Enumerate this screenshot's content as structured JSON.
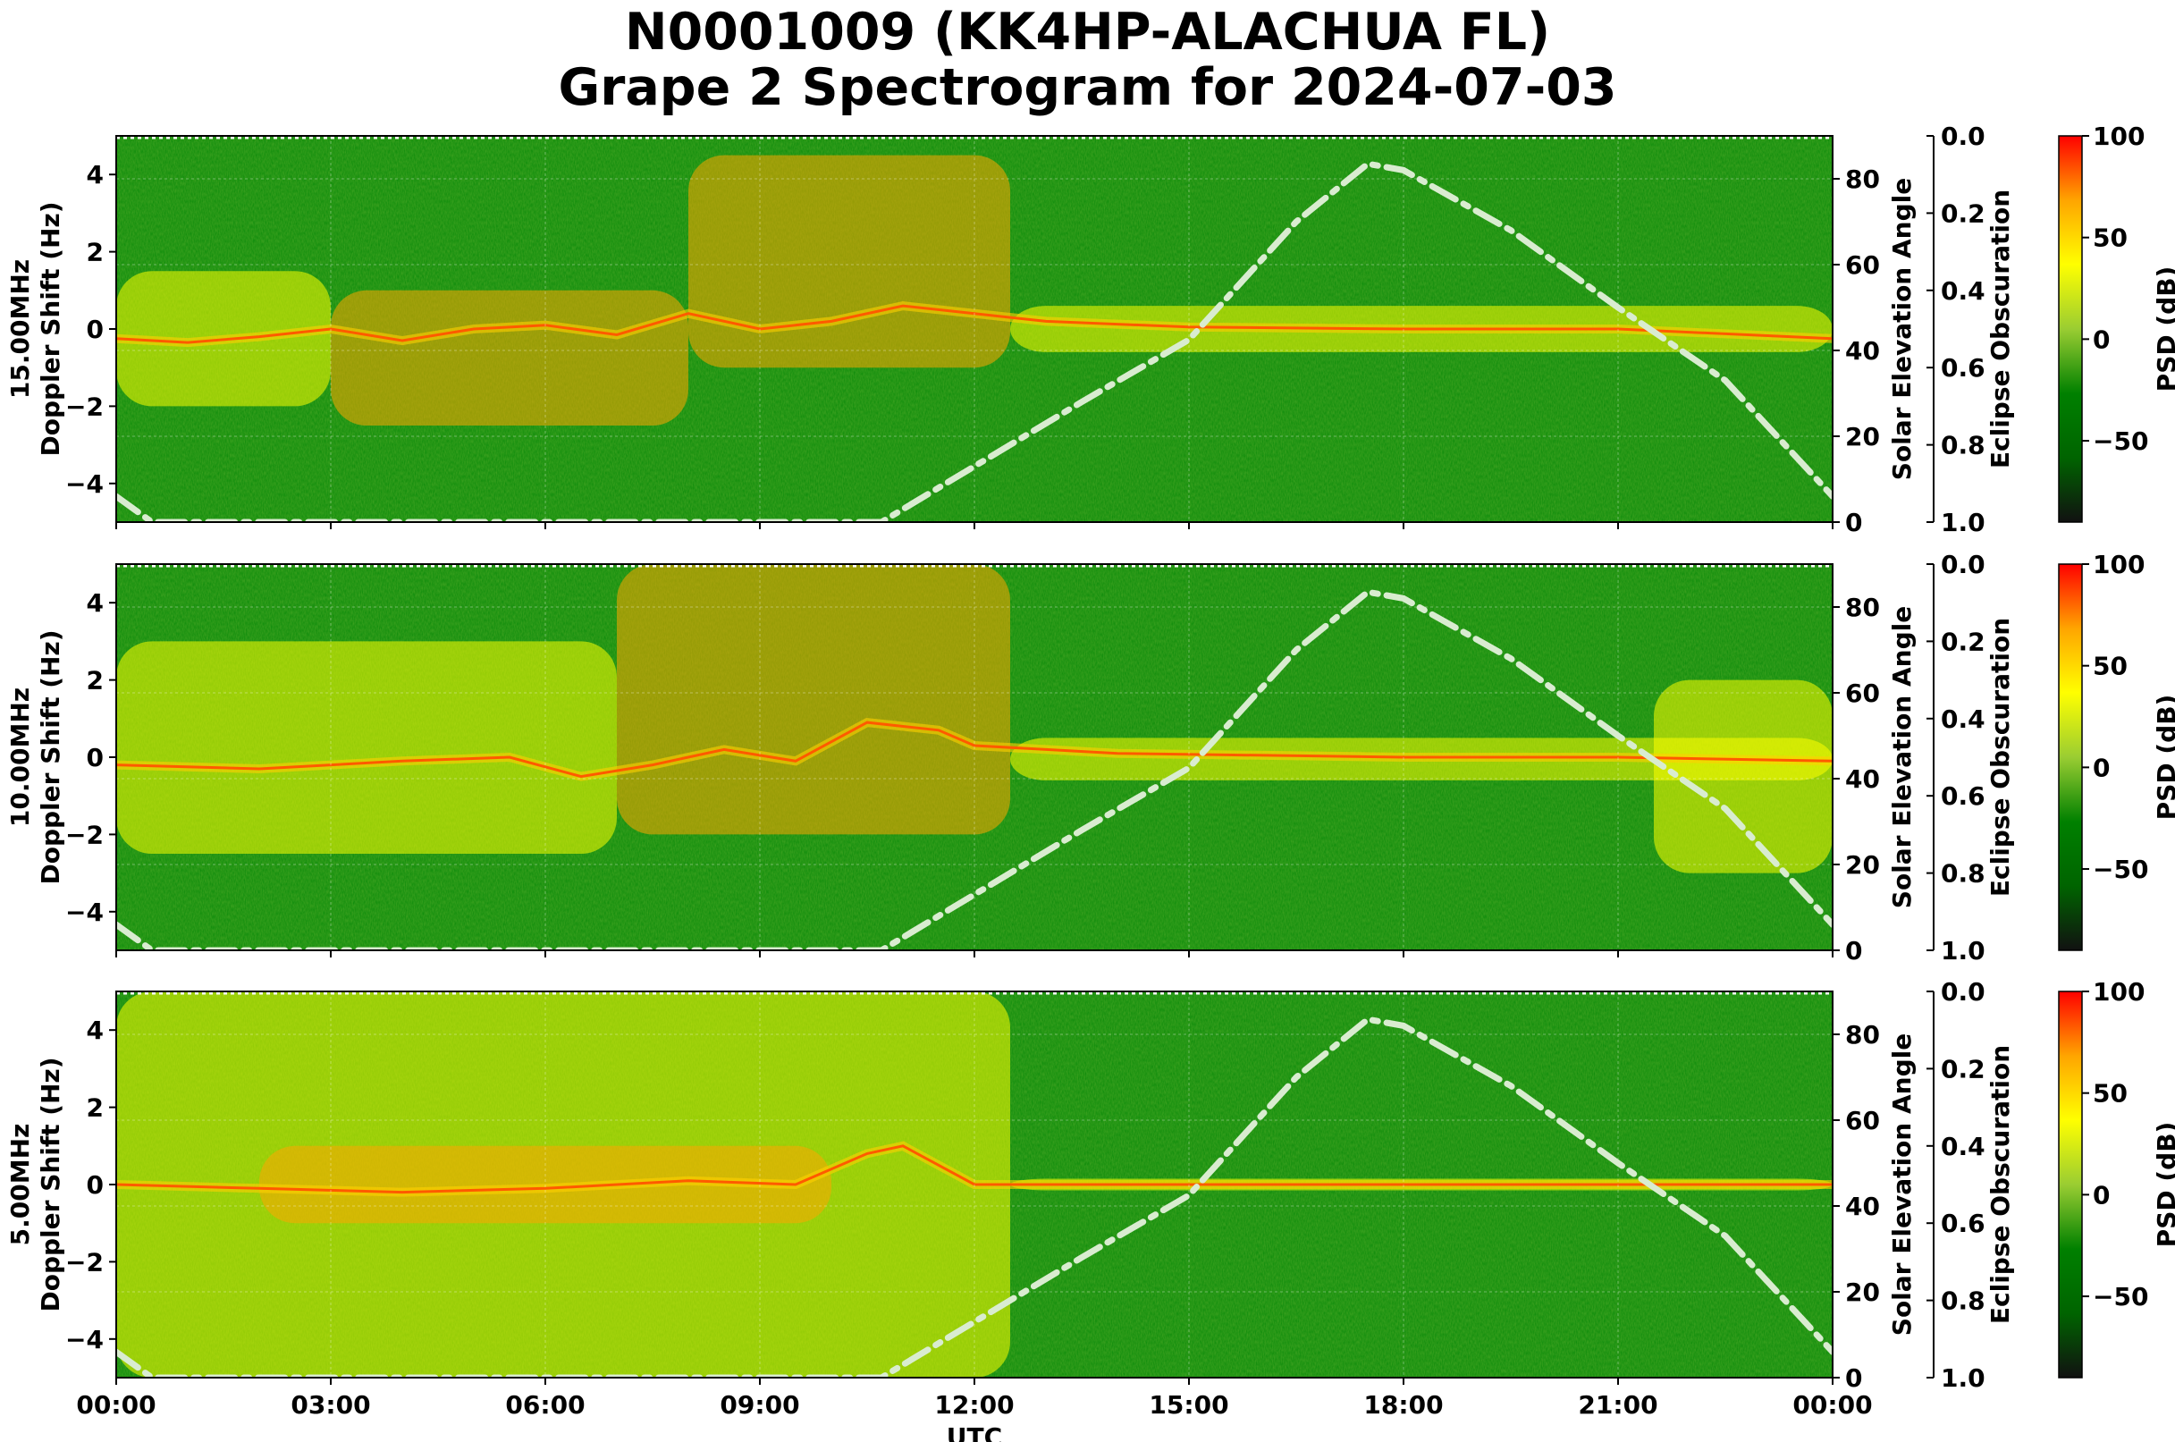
{
  "title": {
    "line1": "N0001009 (KK4HP-ALACHUA FL)",
    "line2": "Grape 2 Spectrogram for 2024-07-03"
  },
  "colors": {
    "cmap": [
      "#111111",
      "#006400",
      "#008000",
      "#9acd32",
      "#ffff00",
      "#ffa500",
      "#ff0000"
    ],
    "sun_curve": "#d9ecd0"
  },
  "chart_data": {
    "type": "heatmap",
    "shared_x": {
      "label": "UTC",
      "range_hours": [
        0,
        24
      ],
      "ticks_hours": [
        0,
        3,
        6,
        9,
        12,
        15,
        18,
        21,
        24
      ],
      "tick_labels": [
        "00:00",
        "03:00",
        "06:00",
        "09:00",
        "12:00",
        "15:00",
        "18:00",
        "21:00",
        "00:00"
      ]
    },
    "y_range_hz": [
      -5,
      5
    ],
    "y_ticks": [
      -4,
      -2,
      0,
      2,
      4
    ],
    "y_tick_labels": [
      "−4",
      "−2",
      "0",
      "2",
      "4"
    ],
    "right_axis": {
      "label": "Solar Elevation Angle",
      "range_deg": [
        0,
        90
      ],
      "ticks": [
        0,
        20,
        40,
        60,
        80
      ],
      "tick_labels": [
        "0",
        "20",
        "40",
        "60",
        "80"
      ]
    },
    "eclipse_axis": {
      "label": "Eclipse Obscuration",
      "range": [
        1.0,
        0.0
      ],
      "ticks": [
        0.0,
        0.2,
        0.4,
        0.6,
        0.8,
        1.0
      ],
      "tick_labels": [
        "0.0",
        "0.2",
        "0.4",
        "0.6",
        "0.8",
        "1.0"
      ]
    },
    "colorbar": {
      "label": "PSD (dB)",
      "range_db": [
        -90,
        100
      ],
      "ticks": [
        100,
        50,
        0,
        -50
      ],
      "tick_labels": [
        "100",
        "50",
        "0",
        "−50"
      ]
    },
    "solar_elevation_curve": {
      "style": "dash-dot",
      "points": [
        [
          0,
          6
        ],
        [
          0.5,
          0
        ],
        [
          10.7,
          0
        ],
        [
          12,
          13
        ],
        [
          13.5,
          28
        ],
        [
          15,
          42.5
        ],
        [
          16.5,
          70
        ],
        [
          17.5,
          83.5
        ],
        [
          18,
          82
        ],
        [
          19.5,
          68
        ],
        [
          21,
          50
        ],
        [
          22.5,
          33
        ],
        [
          24,
          6
        ]
      ]
    },
    "panels": [
      {
        "ylabel_freq": "15.00MHz",
        "ylabel": "Doppler Shift (Hz)",
        "carrier_trace": [
          [
            0,
            -0.25
          ],
          [
            1,
            -0.35
          ],
          [
            2,
            -0.2
          ],
          [
            3,
            0
          ],
          [
            4,
            -0.3
          ],
          [
            5,
            0
          ],
          [
            6,
            0.1
          ],
          [
            7,
            -0.15
          ],
          [
            8,
            0.4
          ],
          [
            9,
            0
          ],
          [
            10,
            0.2
          ],
          [
            11,
            0.6
          ],
          [
            12,
            0.4
          ],
          [
            13,
            0.2
          ],
          [
            15,
            0.05
          ],
          [
            18,
            0
          ],
          [
            21,
            0
          ],
          [
            24,
            -0.25
          ]
        ],
        "enhancement_regions": [
          {
            "hours": [
              0,
              3
            ],
            "hz": [
              -2,
              1.5
            ],
            "level_db": 45
          },
          {
            "hours": [
              3,
              8
            ],
            "hz": [
              -2.5,
              1
            ],
            "level_db": 55
          },
          {
            "hours": [
              8,
              12.5
            ],
            "hz": [
              -1,
              4.5
            ],
            "level_db": 60
          },
          {
            "hours": [
              12.5,
              24
            ],
            "hz": [
              -0.6,
              0.6
            ],
            "level_db": 45
          }
        ]
      },
      {
        "ylabel_freq": "10.00MHz",
        "ylabel": "Doppler Shift (Hz)",
        "carrier_trace": [
          [
            0,
            -0.2
          ],
          [
            2,
            -0.3
          ],
          [
            4,
            -0.1
          ],
          [
            5.5,
            0
          ],
          [
            6.5,
            -0.5
          ],
          [
            7.5,
            -0.2
          ],
          [
            8.5,
            0.2
          ],
          [
            9.5,
            -0.1
          ],
          [
            10.5,
            0.9
          ],
          [
            11.5,
            0.7
          ],
          [
            12,
            0.3
          ],
          [
            14,
            0.1
          ],
          [
            18,
            0
          ],
          [
            21,
            0
          ],
          [
            24,
            -0.1
          ]
        ],
        "enhancement_regions": [
          {
            "hours": [
              0,
              7
            ],
            "hz": [
              -2.5,
              3
            ],
            "level_db": 45
          },
          {
            "hours": [
              7,
              12.5
            ],
            "hz": [
              -2,
              5
            ],
            "level_db": 55
          },
          {
            "hours": [
              12.5,
              24
            ],
            "hz": [
              -0.6,
              0.5
            ],
            "level_db": 40
          },
          {
            "hours": [
              21.5,
              24
            ],
            "hz": [
              -3,
              2
            ],
            "level_db": 30
          }
        ]
      },
      {
        "ylabel_freq": "5.00MHz",
        "ylabel": "Doppler Shift (Hz)",
        "carrier_trace": [
          [
            0,
            0
          ],
          [
            2,
            -0.1
          ],
          [
            4,
            -0.2
          ],
          [
            6,
            -0.1
          ],
          [
            8,
            0.1
          ],
          [
            9.5,
            0
          ],
          [
            10.5,
            0.8
          ],
          [
            11,
            1.0
          ],
          [
            12,
            0
          ],
          [
            24,
            0
          ]
        ],
        "enhancement_regions": [
          {
            "hours": [
              0,
              12.5
            ],
            "hz": [
              -5,
              5
            ],
            "level_db": 50
          },
          {
            "hours": [
              2,
              10
            ],
            "hz": [
              -1,
              1
            ],
            "level_db": 80
          },
          {
            "hours": [
              12.5,
              24
            ],
            "hz": [
              -0.15,
              0.15
            ],
            "level_db": 40
          }
        ]
      }
    ]
  }
}
